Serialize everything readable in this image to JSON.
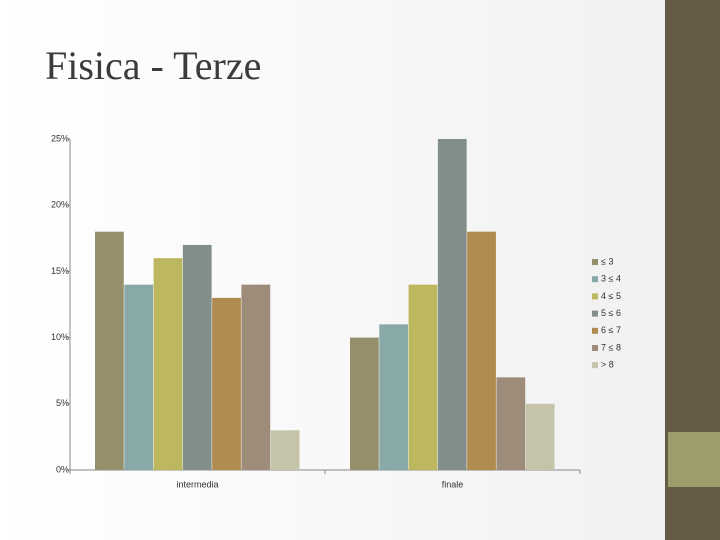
{
  "chart_data": {
    "type": "bar",
    "title": "Fisica - Terze",
    "categories": [
      "intermedia",
      "finale"
    ],
    "series": [
      {
        "name": "≤ 3",
        "color": "#968f6b",
        "values": [
          18,
          10
        ]
      },
      {
        "name": "3 ≤ 4",
        "color": "#89a8a8",
        "values": [
          14,
          11
        ]
      },
      {
        "name": "4 ≤ 5",
        "color": "#bdb860",
        "values": [
          16,
          14
        ]
      },
      {
        "name": "5 ≤ 6",
        "color": "#828e88",
        "values": [
          17,
          25
        ]
      },
      {
        "name": "6 ≤ 7",
        "color": "#b08c50",
        "values": [
          13,
          18
        ]
      },
      {
        "name": "7 ≤ 8",
        "color": "#9e8c7a",
        "values": [
          14,
          7
        ]
      },
      {
        "name": "> 8",
        "color": "#c5c3aa",
        "values": [
          3,
          5
        ]
      }
    ],
    "ylim": [
      0,
      25
    ],
    "yticks": [
      {
        "value": 0,
        "label": "0%"
      },
      {
        "value": 5,
        "label": "5%"
      },
      {
        "value": 10,
        "label": "10%"
      },
      {
        "value": 15,
        "label": "15%"
      },
      {
        "value": 20,
        "label": "20%"
      },
      {
        "value": 25,
        "label": "25%"
      }
    ],
    "grid": false,
    "legend": "right"
  }
}
